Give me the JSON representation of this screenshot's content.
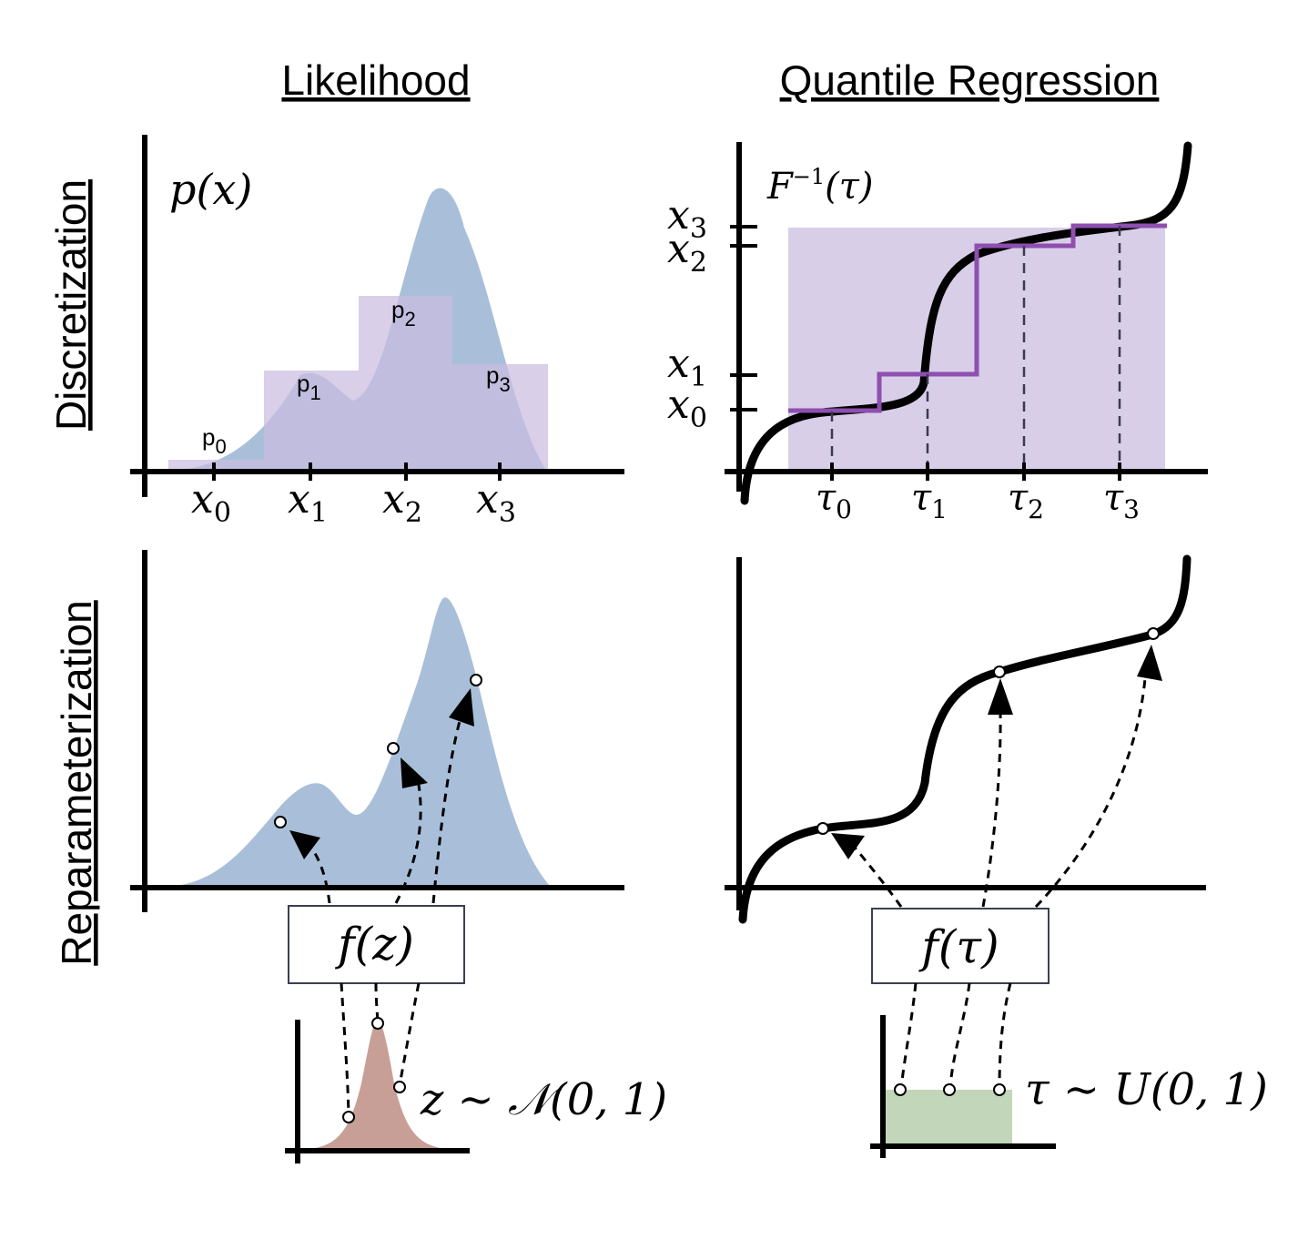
{
  "columns": {
    "left": "Likelihood",
    "right": "Quantile Regression"
  },
  "rows": {
    "top": "Discretization",
    "bottom": "Reparameterization"
  },
  "panel_discretization_likelihood": {
    "y_label": "p(x)",
    "x_ticks": [
      "x",
      "x",
      "x",
      "x"
    ],
    "x_tick_subscripts": [
      "0",
      "1",
      "2",
      "3"
    ],
    "bin_labels": [
      "p",
      "p",
      "p",
      "p"
    ],
    "bin_subscripts": [
      "0",
      "1",
      "2",
      "3"
    ],
    "bin_probabilities": [
      0.03,
      0.36,
      0.6,
      0.38
    ]
  },
  "panel_discretization_quantile": {
    "y_label": "F",
    "y_label_sup": "−1",
    "y_label_arg": "(τ)",
    "y_ticks": [
      "x",
      "x",
      "x",
      "x"
    ],
    "y_tick_subscripts": [
      "3",
      "2",
      "1",
      "0"
    ],
    "x_ticks": [
      "τ",
      "τ",
      "τ",
      "τ"
    ],
    "x_tick_subscripts": [
      "0",
      "1",
      "2",
      "3"
    ]
  },
  "panel_reparam_likelihood": {
    "function_label": "f(z)",
    "base_label": "z ∼ 𝒩(0, 1)"
  },
  "panel_reparam_quantile": {
    "function_label": "f(τ)",
    "base_label": "τ ∼ U(0, 1)"
  },
  "colors": {
    "density_fill": "#a9bfd9",
    "bin_fill": "#cbbde0",
    "step_line": "#8e4fb0",
    "normal_fill": "#c79f96",
    "uniform_fill": "#c2d6b9"
  }
}
